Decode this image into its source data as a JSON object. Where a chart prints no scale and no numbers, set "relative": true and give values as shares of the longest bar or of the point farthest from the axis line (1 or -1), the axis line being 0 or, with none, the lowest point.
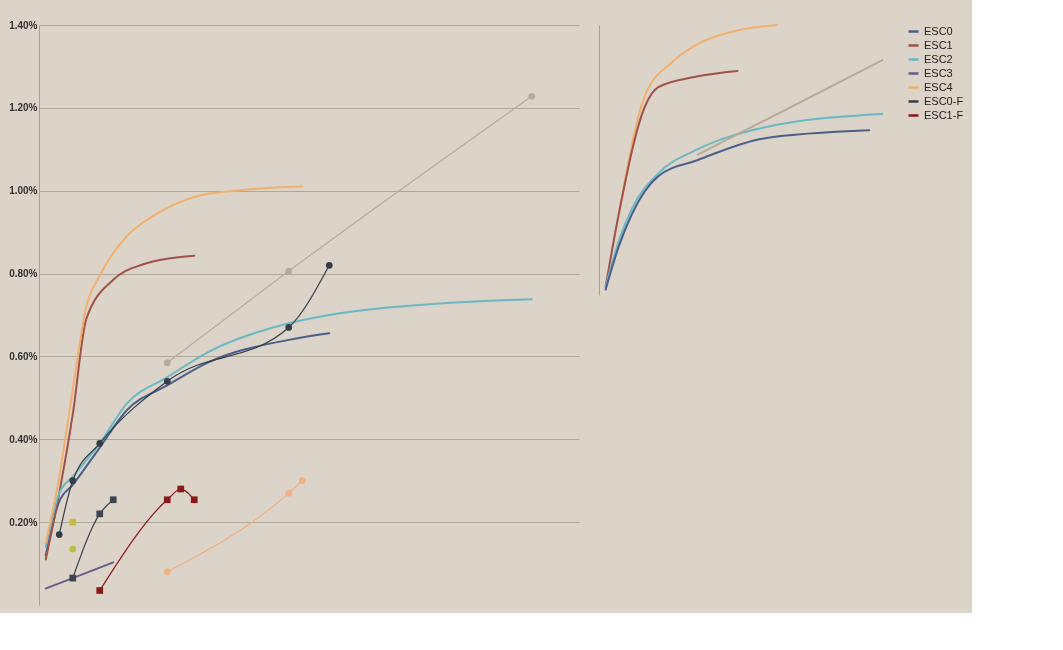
{
  "chart_data": [
    {
      "type": "line",
      "categories": [
        null,
        null,
        null,
        null,
        null,
        null,
        null,
        null,
        null,
        null,
        null,
        null,
        null,
        null,
        null,
        null,
        null,
        null,
        null,
        null,
        null,
        null,
        null,
        null,
        null,
        null,
        null,
        null,
        null,
        null,
        null,
        null,
        null,
        null,
        null,
        null,
        null,
        null,
        null,
        null
      ],
      "ylim": [
        0,
        1.4
      ],
      "yticks": [
        {
          "value": 0.2,
          "label": "0.20%"
        },
        {
          "value": 0.4,
          "label": "0.40%"
        },
        {
          "value": 0.6,
          "label": "0.60%"
        },
        {
          "value": 0.8,
          "label": "0.80%"
        },
        {
          "value": 1.0,
          "label": "1.00%"
        },
        {
          "value": 1.2,
          "label": "1.20%"
        },
        {
          "value": 1.4,
          "label": "1.40%"
        }
      ],
      "grid": "y",
      "legend": "right",
      "tick_labels": "y",
      "series": [
        {
          "name": "ESC0",
          "color": "#4a5f8a",
          "values": [
            0.12,
            0.25,
            0.29,
            null,
            0.38,
            null,
            0.47,
            null,
            null,
            0.53,
            null,
            null,
            0.585,
            null,
            null,
            null,
            null,
            null,
            0.64,
            null,
            null,
            0.656,
            null,
            null,
            null,
            null,
            null,
            null,
            null,
            null,
            null,
            null,
            null,
            null,
            null,
            null,
            null,
            null,
            null,
            null
          ]
        },
        {
          "name": "ESC1",
          "color": "#a0524a",
          "values": [
            0.11,
            0.27,
            0.46,
            0.69,
            null,
            0.785,
            null,
            0.82,
            null,
            null,
            null,
            0.843,
            null,
            null,
            null,
            null,
            null,
            null,
            null,
            null,
            null,
            null,
            null,
            null,
            null,
            null,
            null,
            null,
            null,
            null,
            null,
            null,
            null,
            null,
            null,
            null,
            null,
            null,
            null,
            null
          ]
        },
        {
          "name": "ESC2",
          "color": "#6cb8c4",
          "values": [
            0.14,
            0.27,
            0.31,
            null,
            0.39,
            null,
            0.486,
            null,
            null,
            0.55,
            null,
            null,
            0.61,
            null,
            null,
            null,
            null,
            null,
            0.68,
            null,
            null,
            0.7,
            null,
            null,
            null,
            null,
            null,
            null,
            0.725,
            null,
            null,
            null,
            null,
            null,
            null,
            null,
            0.738,
            null,
            null,
            null
          ]
        },
        {
          "name": "ESC3",
          "color": "#6a5a8a",
          "values": [
            0.04,
            null,
            0.065,
            null,
            null,
            0.103,
            null,
            null,
            null,
            null,
            null,
            null,
            null,
            null,
            null,
            null,
            null,
            null,
            null,
            null,
            null,
            null,
            null,
            null,
            null,
            null,
            null,
            null,
            null,
            null,
            null,
            null,
            null,
            null,
            null,
            null,
            null,
            null,
            null,
            null
          ]
        },
        {
          "name": "ESC4",
          "color": "#f0b070",
          "values": [
            0.15,
            0.31,
            0.52,
            0.72,
            0.795,
            null,
            0.89,
            null,
            0.94,
            null,
            null,
            0.985,
            null,
            null,
            1.0,
            null,
            null,
            null,
            null,
            1.01,
            null,
            null,
            null,
            null,
            null,
            null,
            null,
            null,
            null,
            null,
            null,
            null,
            null,
            null,
            null,
            null,
            null,
            null,
            null,
            null
          ]
        },
        {
          "name": "ESC0-F",
          "color": "#333c48",
          "marker": "circle",
          "values": [
            null,
            0.17,
            0.3,
            null,
            0.39,
            null,
            null,
            null,
            null,
            0.54,
            null,
            null,
            null,
            null,
            null,
            null,
            null,
            null,
            0.67,
            null,
            null,
            0.82,
            null,
            null,
            null,
            null,
            null,
            null,
            null,
            null,
            null,
            null,
            null,
            null,
            null,
            null,
            null,
            null,
            null,
            null
          ]
        },
        {
          "name": "ESC1-F",
          "color": "#8a1a1a",
          "marker": "square",
          "values": [
            null,
            null,
            null,
            null,
            0.035,
            null,
            null,
            null,
            null,
            0.254,
            0.28,
            0.254,
            null,
            null,
            null,
            null,
            null,
            null,
            null,
            null,
            null,
            null,
            null,
            null,
            null,
            null,
            null,
            null,
            null,
            null,
            null,
            null,
            null,
            null,
            null,
            null,
            null,
            null,
            null,
            null
          ]
        },
        {
          "color": "#b8aa98",
          "marker": "circle",
          "values": [
            null,
            null,
            null,
            null,
            null,
            null,
            null,
            null,
            null,
            0.585,
            null,
            null,
            null,
            null,
            null,
            null,
            null,
            null,
            0.806,
            null,
            null,
            null,
            null,
            null,
            null,
            null,
            null,
            null,
            null,
            null,
            null,
            null,
            null,
            null,
            null,
            null,
            1.228,
            null,
            null,
            null
          ]
        },
        {
          "color": "#3c4450",
          "marker": "square",
          "values": [
            null,
            null,
            0.065,
            null,
            0.22,
            0.254,
            null,
            null,
            null,
            null,
            null,
            null,
            null,
            null,
            null,
            null,
            null,
            null,
            null,
            null,
            null,
            null,
            null,
            null,
            null,
            null,
            null,
            null,
            null,
            null,
            null,
            null,
            null,
            null,
            null,
            null,
            null,
            null,
            null,
            null
          ]
        },
        {
          "color": "#c8b840",
          "marker": "square",
          "values": [
            null,
            null,
            0.2,
            null,
            null,
            null,
            null,
            null,
            null,
            null,
            null,
            null,
            null,
            null,
            null,
            null,
            null,
            null,
            null,
            null,
            null,
            null,
            null,
            null,
            null,
            null,
            null,
            null,
            null,
            null,
            null,
            null,
            null,
            null,
            null,
            null,
            null,
            null,
            null,
            null
          ]
        },
        {
          "color": "#b8c040",
          "marker": "circle",
          "values": [
            null,
            null,
            0.135,
            null,
            null,
            null,
            null,
            null,
            null,
            null,
            null,
            null,
            null,
            null,
            null,
            null,
            null,
            null,
            null,
            null,
            null,
            null,
            null,
            null,
            null,
            null,
            null,
            null,
            null,
            null,
            null,
            null,
            null,
            null,
            null,
            null,
            null,
            null,
            null,
            null
          ]
        },
        {
          "color": "#f0b080",
          "marker": "circle",
          "values": [
            null,
            null,
            null,
            null,
            null,
            null,
            null,
            null,
            null,
            0.08,
            null,
            null,
            null,
            null,
            null,
            null,
            null,
            null,
            0.27,
            0.3,
            null,
            null,
            null,
            null,
            null,
            null,
            null,
            null,
            null,
            null,
            null,
            null,
            null,
            null,
            null,
            null,
            null,
            null,
            null,
            null
          ]
        }
      ]
    },
    {
      "type": "line",
      "categories": [
        null,
        null,
        null,
        null,
        null,
        null,
        null,
        null,
        null,
        null,
        null,
        null,
        null,
        null,
        null,
        null,
        null,
        null,
        null,
        null,
        null,
        null
      ],
      "relative": true,
      "tick_labels": false,
      "series": [
        {
          "color": "#f0b070",
          "values": [
            null,
            0.3,
            null,
            0.74,
            null,
            0.86,
            null,
            0.93,
            null,
            null,
            0.98,
            null,
            null,
            1.0,
            null,
            null,
            null,
            null,
            null,
            null,
            null,
            null
          ]
        },
        {
          "color": "#a0524a",
          "values": [
            0.03,
            0.3,
            null,
            0.7,
            0.77,
            null,
            null,
            0.81,
            null,
            null,
            0.83,
            null,
            null,
            null,
            null,
            null,
            null,
            null,
            null,
            null,
            null,
            null
          ]
        },
        {
          "color": "#6cb8c4",
          "values": [
            0.03,
            0.2,
            0.32,
            null,
            0.45,
            null,
            null,
            0.54,
            null,
            null,
            null,
            null,
            0.62,
            null,
            null,
            null,
            null,
            null,
            null,
            null,
            null,
            0.67
          ]
        },
        {
          "color": "#4a5f8a",
          "values": [
            0.02,
            0.18,
            0.3,
            null,
            0.44,
            null,
            null,
            0.5,
            null,
            null,
            null,
            null,
            0.58,
            null,
            null,
            null,
            null,
            null,
            null,
            null,
            0.61,
            null
          ]
        },
        {
          "color": "#b8aa98",
          "values": [
            null,
            null,
            null,
            null,
            null,
            null,
            null,
            0.52,
            null,
            null,
            null,
            null,
            null,
            null,
            null,
            null,
            null,
            null,
            null,
            null,
            null,
            0.87
          ]
        }
      ]
    }
  ]
}
